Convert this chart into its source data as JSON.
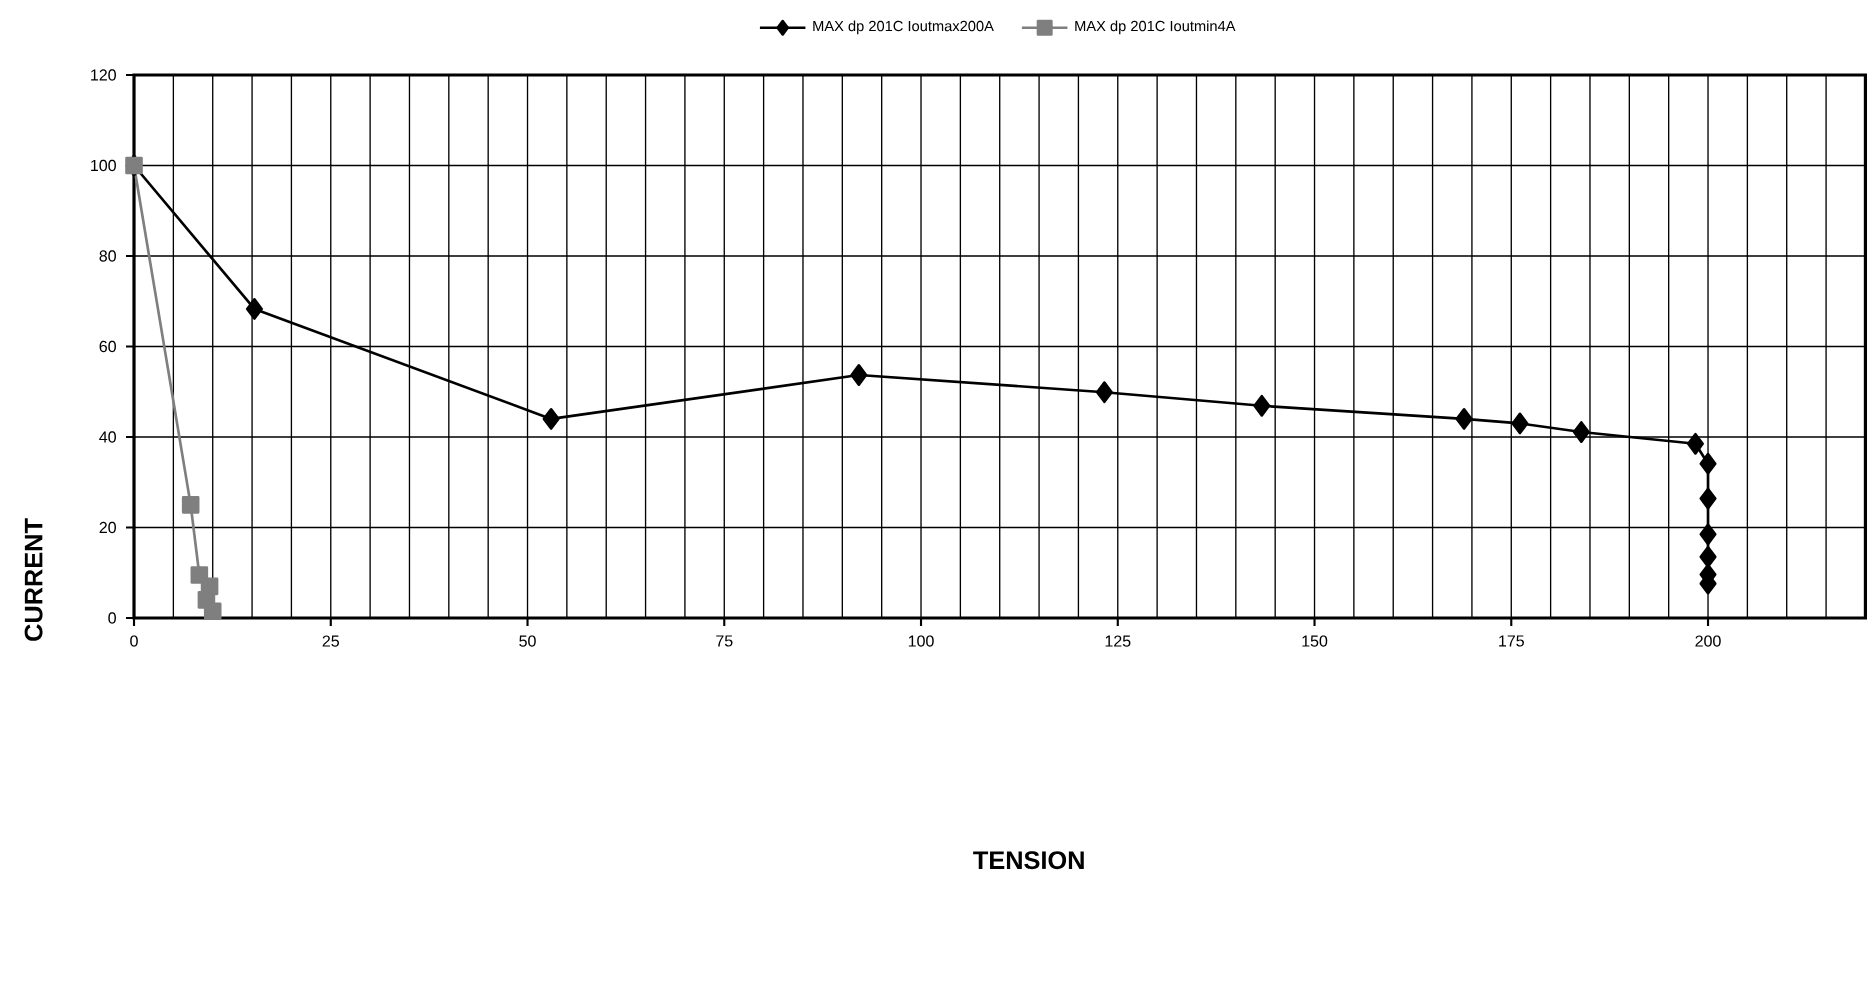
{
  "chart_data": {
    "type": "line",
    "annotations": [
      "TENSION"
    ],
    "ylabel": "CURRENT",
    "xlim": [
      0,
      220
    ],
    "ylim": [
      0,
      120
    ],
    "xticks": [
      0,
      {
        "value": 5,
        "label": null
      },
      {
        "value": 10,
        "label": null
      },
      {
        "value": 15,
        "label": null
      },
      {
        "value": 20,
        "label": null
      },
      25,
      {
        "value": 30,
        "label": null
      },
      {
        "value": 35,
        "label": null
      },
      {
        "value": 40,
        "label": null
      },
      {
        "value": 45,
        "label": null
      },
      50,
      {
        "value": 55,
        "label": null
      },
      {
        "value": 60,
        "label": null
      },
      {
        "value": 65,
        "label": null
      },
      {
        "value": 70,
        "label": null
      },
      75,
      {
        "value": 80,
        "label": null
      },
      {
        "value": 85,
        "label": null
      },
      {
        "value": 90,
        "label": null
      },
      {
        "value": 95,
        "label": null
      },
      100,
      {
        "value": 105,
        "label": null
      },
      {
        "value": 110,
        "label": null
      },
      {
        "value": 115,
        "label": null
      },
      {
        "value": 120,
        "label": null
      },
      125,
      {
        "value": 130,
        "label": null
      },
      {
        "value": 135,
        "label": null
      },
      {
        "value": 140,
        "label": null
      },
      {
        "value": 145,
        "label": null
      },
      150,
      {
        "value": 155,
        "label": null
      },
      {
        "value": 160,
        "label": null
      },
      {
        "value": 165,
        "label": null
      },
      {
        "value": 170,
        "label": null
      },
      175,
      {
        "value": 180,
        "label": null
      },
      {
        "value": 185,
        "label": null
      },
      {
        "value": 190,
        "label": null
      },
      {
        "value": 195,
        "label": null
      },
      200,
      {
        "value": 205,
        "label": null
      },
      {
        "value": 210,
        "label": null
      },
      {
        "value": 215,
        "label": null
      }
    ],
    "yticks": [
      0,
      20,
      40,
      60,
      80,
      100,
      120
    ],
    "grid": true,
    "legend": "top",
    "line_style": "solid",
    "series": [
      {
        "name": "MAX dp 201C Ioutmax200A",
        "color": "#000000",
        "marker": "diamond",
        "x": [
          0,
          15.3,
          53,
          92.1,
          123.3,
          143.3,
          169,
          176.1,
          183.9,
          198.4,
          200,
          200,
          200,
          200,
          200,
          200
        ],
        "values": [
          100,
          68.3,
          44,
          53.7,
          49.9,
          46.9,
          44,
          43,
          41.1,
          38.5,
          34.1,
          26.4,
          18.5,
          13.5,
          9.6,
          7.6
        ]
      },
      {
        "name": "MAX dp 201C Ioutmin4A",
        "color": "#7f7f7f",
        "marker": "square",
        "x": [
          0,
          7.2,
          8.3,
          9.6,
          9.2,
          10
        ],
        "values": [
          100,
          25,
          9.5,
          7,
          4,
          1.5
        ]
      }
    ]
  }
}
